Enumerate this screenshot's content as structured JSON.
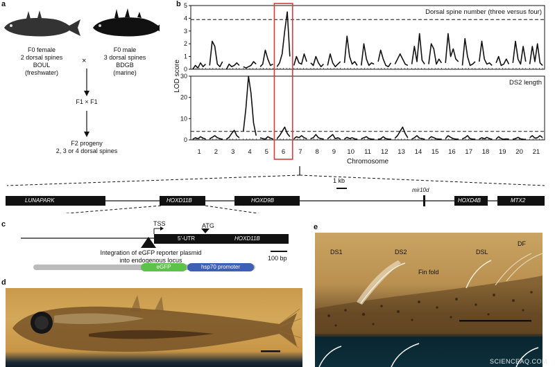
{
  "panel_a": {
    "letter": "a",
    "female": [
      "F0 female",
      "2 dorsal spines",
      "BOUL",
      "(freshwater)"
    ],
    "male": [
      "F0 male",
      "3 dorsal spines",
      "BDGB",
      "(marine)"
    ],
    "cross_symbol": "×",
    "f1": "F1 × F1",
    "f2": [
      "F2 progeny",
      "2, 3 or 4 dorsal spines"
    ]
  },
  "panel_b": {
    "letter": "b",
    "ylabel": "LOD score",
    "xlabel": "Chromosome",
    "highlight_chromosome": "6",
    "highlight_color": "#d33c3c"
  },
  "chart_data": [
    {
      "type": "line",
      "title": "Dorsal spine number (three versus four)",
      "ylabel": "LOD score",
      "xlabel": "Chromosome",
      "ylim": [
        0,
        5
      ],
      "yticks": [
        0,
        1,
        2,
        3,
        4,
        5
      ],
      "threshold": 3.9,
      "categories": [
        "1",
        "2",
        "3",
        "4",
        "5",
        "6",
        "7",
        "8",
        "9",
        "10",
        "11",
        "12",
        "13",
        "14",
        "15",
        "16",
        "17",
        "18",
        "19",
        "20",
        "21"
      ],
      "series": [
        {
          "values": [
            [
              0,
              0.3,
              0.1,
              0.5,
              0.2,
              0.4
            ],
            [
              0.3,
              2.2,
              1.8,
              0.4,
              0.2,
              0.6
            ],
            [
              0,
              0.4,
              0.2,
              0.3,
              0.5,
              0.3
            ],
            [
              0.2,
              0.1,
              0.2,
              0.3,
              0.6,
              0.4
            ],
            [
              0.2,
              0.4,
              1.5,
              0.8,
              0.3,
              0.4
            ],
            [
              0.2,
              0.5,
              1.2,
              3.0,
              4.5,
              1.0
            ],
            [
              0.3,
              1.0,
              0.5,
              0.4,
              1.2,
              0.6
            ],
            [
              0.5,
              0.3,
              1.0,
              0.5,
              0.2,
              0.4
            ],
            [
              0.3,
              1.2,
              0.5,
              0.2,
              0.4,
              0.6
            ],
            [
              0.5,
              2.6,
              1.0,
              0.4,
              0.6,
              0.3
            ],
            [
              0.3,
              2.0,
              0.8,
              0.3,
              0.5,
              0.4
            ],
            [
              0.6,
              1.5,
              0.8,
              0.3,
              0.2,
              0.5
            ],
            [
              0.4,
              0.8,
              1.2,
              0.8,
              0.4,
              0.3
            ],
            [
              0.4,
              1.8,
              0.6,
              2.8,
              0.7,
              0.4
            ],
            [
              0.4,
              2.0,
              1.6,
              0.4,
              0.8,
              0.5
            ],
            [
              0.5,
              2.8,
              1.0,
              1.6,
              0.8,
              0.6
            ],
            [
              0.3,
              2.4,
              1.0,
              0.3,
              0.4,
              0.6
            ],
            [
              0.6,
              2.2,
              0.8,
              0.4,
              0.5,
              0.3
            ],
            [
              0.5,
              1.0,
              0.3,
              0.4,
              0.8,
              0.4
            ],
            [
              0.5,
              2.2,
              0.8,
              0.4,
              1.8,
              0.6
            ],
            [
              0.4,
              1.8,
              0.6,
              2.0,
              0.5,
              0.3
            ]
          ]
        }
      ]
    },
    {
      "type": "line",
      "title": "DS2 length",
      "ylabel": "LOD score",
      "xlabel": "Chromosome",
      "ylim": [
        0,
        30
      ],
      "yticks": [
        0,
        10,
        20,
        30
      ],
      "threshold": 4,
      "categories": [
        "1",
        "2",
        "3",
        "4",
        "5",
        "6",
        "7",
        "8",
        "9",
        "10",
        "11",
        "12",
        "13",
        "14",
        "15",
        "16",
        "17",
        "18",
        "19",
        "20",
        "21"
      ],
      "series": [
        {
          "values": [
            [
              0.3,
              1,
              0.5,
              1.5,
              0.8,
              0.4
            ],
            [
              0.5,
              1.2,
              2,
              1,
              0.6,
              0.3
            ],
            [
              0.4,
              1.2,
              3,
              4.5,
              2,
              1
            ],
            [
              4,
              15,
              30,
              22,
              8,
              2
            ],
            [
              1,
              0.6,
              0.4,
              1.5,
              0.8,
              0.4
            ],
            [
              0.6,
              2,
              4,
              6,
              3,
              1.5
            ],
            [
              0.5,
              1.5,
              1,
              2,
              1,
              0.6
            ],
            [
              0.6,
              1,
              2.5,
              1,
              0.6,
              0.4
            ],
            [
              0.5,
              1.5,
              2.5,
              0.6,
              1,
              0.4
            ],
            [
              0.4,
              1.2,
              0.6,
              1,
              0.5,
              0.3
            ],
            [
              0.5,
              1,
              1.5,
              0.6,
              0.4,
              0.3
            ],
            [
              0.3,
              0.5,
              1.5,
              0.6,
              0.4,
              0.3
            ],
            [
              0.8,
              2,
              4,
              6,
              3,
              1
            ],
            [
              0.4,
              1,
              2,
              0.8,
              0.6,
              0.3
            ],
            [
              0.5,
              1.5,
              1,
              0.5,
              0.4,
              0.3
            ],
            [
              0.6,
              2,
              1.2,
              0.6,
              0.4,
              0.3
            ],
            [
              0.5,
              1,
              2,
              0.6,
              0.4,
              0.3
            ],
            [
              0.4,
              1,
              0.5,
              1.2,
              0.6,
              0.3
            ],
            [
              0.4,
              1.5,
              0.6,
              0.3,
              0.5,
              0.3
            ],
            [
              0.3,
              0.6,
              1.2,
              0.5,
              0.3,
              0.2
            ],
            [
              1,
              2,
              0.8,
              1,
              2,
              1
            ]
          ]
        }
      ]
    }
  ],
  "gene_map": {
    "scale_label": "1 kb",
    "mir_label": "mir10d",
    "genes": [
      "LUNAPARK",
      "HOXD11B",
      "HOXD9B",
      "HOXD4B",
      "MTX2"
    ]
  },
  "panel_c": {
    "letter": "c",
    "tss": "TSS",
    "atg": "ATG",
    "utr": "5′-UTR",
    "gene": "HOXD11B",
    "integration": [
      "Integration of eGFP reporter plasmid",
      "into endogenous locus"
    ],
    "scale_label": "100 bp",
    "egfp": "eGFP",
    "promoter": "hsp70 promoter",
    "egfp_color": "#5cc24a",
    "promoter_color": "#3d5fb5"
  },
  "panel_d": {
    "letter": "d"
  },
  "panel_e": {
    "letter": "e",
    "labels": [
      "DS1",
      "DS2",
      "Fin fold",
      "DSL",
      "DF"
    ]
  },
  "watermark": "SCIENCEAQ.COM"
}
